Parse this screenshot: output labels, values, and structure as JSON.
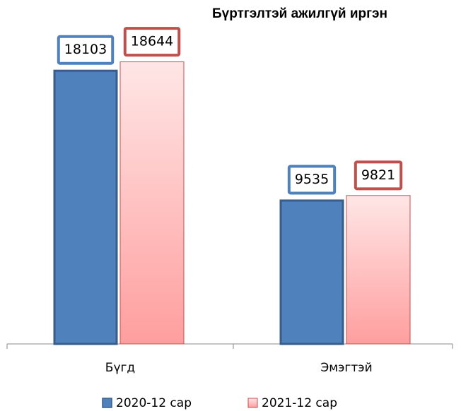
{
  "chart_data": {
    "type": "bar",
    "title": "Бүртгэлтэй ажилгүй иргэн",
    "categories": [
      "Бүгд",
      "Эмэгтэй"
    ],
    "series": [
      {
        "name": "2020-12 сар",
        "color": "#4f81bd",
        "values": [
          18103,
          9535
        ]
      },
      {
        "name": "2021-12 сар",
        "color": "#c0504d",
        "values": [
          18644,
          9821
        ]
      }
    ],
    "ylim": [
      0,
      20000
    ],
    "legend": "bottom"
  }
}
